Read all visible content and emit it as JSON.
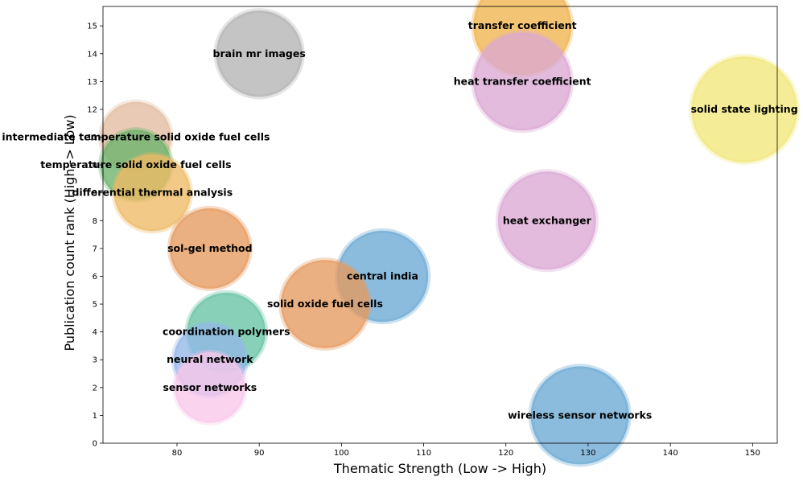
{
  "chart_data": {
    "type": "scatter",
    "title": "",
    "xlabel": "Thematic Strength (Low -> High)",
    "ylabel": "Publication count rank (High -> Low)",
    "xlim": [
      71,
      153
    ],
    "ylim": [
      0,
      15.7
    ],
    "xticks": [
      80,
      90,
      100,
      110,
      120,
      130,
      140,
      150
    ],
    "yticks": [
      0,
      1,
      2,
      3,
      4,
      5,
      6,
      7,
      8,
      9,
      10,
      11,
      12,
      13,
      14,
      15
    ],
    "grid": false,
    "legend": "none",
    "points": [
      {
        "label": "transfer coefficient",
        "x": 122,
        "y": 15,
        "size": 1.0,
        "color": "#f0b44c"
      },
      {
        "label": "brain mr images",
        "x": 90,
        "y": 14,
        "size": 0.88,
        "color": "#b3b3b3"
      },
      {
        "label": "heat transfer coefficient",
        "x": 122,
        "y": 13,
        "size": 1.0,
        "color": "#dba8d4"
      },
      {
        "label": "solid state lighting",
        "x": 149,
        "y": 12,
        "size": 1.08,
        "color": "#f2e77a"
      },
      {
        "label": "intermediate temperature solid oxide fuel cells",
        "x": 75,
        "y": 11,
        "size": 0.72,
        "color": "#e3bca0"
      },
      {
        "label": "temperature solid oxide fuel cells",
        "x": 75,
        "y": 10,
        "size": 0.72,
        "color": "#6ab26a"
      },
      {
        "label": "differential thermal analysis",
        "x": 77,
        "y": 9,
        "size": 0.78,
        "color": "#eeba64"
      },
      {
        "label": "heat exchanger",
        "x": 125,
        "y": 8,
        "size": 1.0,
        "color": "#dba8d4"
      },
      {
        "label": "sol-gel method",
        "x": 84,
        "y": 7,
        "size": 0.82,
        "color": "#e59a5e"
      },
      {
        "label": "central india",
        "x": 105,
        "y": 6,
        "size": 0.93,
        "color": "#6aa9d4"
      },
      {
        "label": "solid oxide fuel cells",
        "x": 98,
        "y": 5,
        "size": 0.9,
        "color": "#e59a5e"
      },
      {
        "label": "coordination polymers",
        "x": 86,
        "y": 4,
        "size": 0.8,
        "color": "#66c4a4"
      },
      {
        "label": "neural network",
        "x": 84,
        "y": 3,
        "size": 0.74,
        "color": "#94b7e8"
      },
      {
        "label": "sensor networks",
        "x": 84,
        "y": 2,
        "size": 0.72,
        "color": "#f9c6ea"
      },
      {
        "label": "wireless sensor networks",
        "x": 129,
        "y": 1,
        "size": 1.0,
        "color": "#6aa9d4"
      }
    ]
  }
}
